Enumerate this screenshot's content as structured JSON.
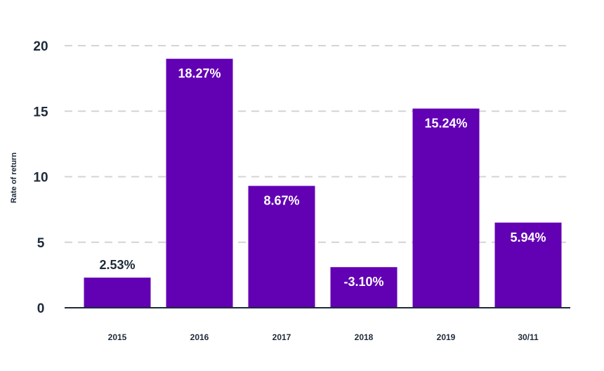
{
  "chart_data": {
    "type": "bar",
    "categories": [
      "2015",
      "2016",
      "2017",
      "2018",
      "2019",
      "30/11"
    ],
    "values": [
      2.53,
      18.27,
      8.67,
      -3.1,
      15.24,
      5.94
    ],
    "value_labels": [
      "2.53%",
      "18.27%",
      "8.67%",
      "-3.10%",
      "15.24%",
      "5.94%"
    ],
    "value_label_position": [
      "above",
      "inside",
      "inside",
      "inside",
      "inside",
      "inside"
    ],
    "display_heights": [
      2.3,
      19.0,
      9.3,
      3.1,
      15.2,
      6.5
    ],
    "title": "",
    "xlabel": "",
    "ylabel": "Rate of return",
    "ylim": [
      0,
      20
    ],
    "yticks": [
      0,
      5,
      10,
      15,
      20
    ],
    "grid": true,
    "grid_style": "dashed",
    "legend": "none"
  },
  "colors": {
    "bar": "#6200b3",
    "grid": "#d4d4d4",
    "axis": "#1e2a3a",
    "text": "#1e2a3a",
    "label_inside": "#ffffff",
    "label_outside": "#1e2a3a"
  }
}
